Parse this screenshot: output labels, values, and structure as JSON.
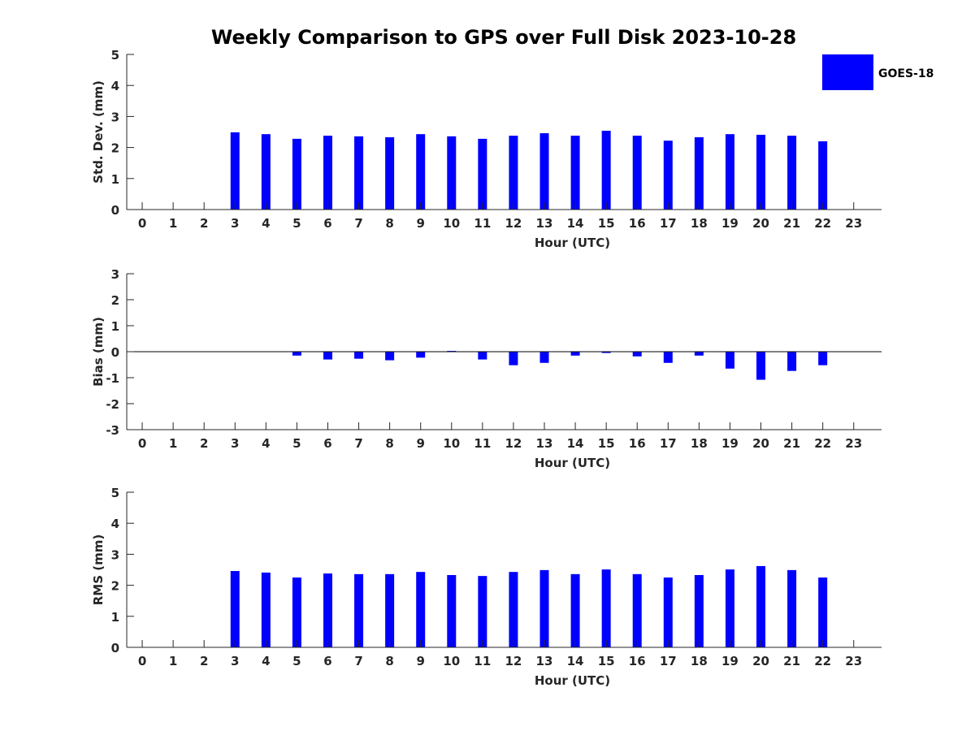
{
  "chart_data": [
    {
      "type": "bar",
      "title": "Weekly Comparison to GPS over Full Disk 2023-10-28",
      "xlabel": "Hour (UTC)",
      "ylabel": "Std. Dev. (mm)",
      "ylim": [
        0,
        5
      ],
      "yticks": [
        "0",
        "1",
        "2",
        "3",
        "4",
        "5"
      ],
      "xlim": [
        -0.5,
        23.9
      ],
      "categories": [
        "0",
        "1",
        "2",
        "3",
        "4",
        "5",
        "6",
        "7",
        "8",
        "9",
        "10",
        "11",
        "12",
        "13",
        "14",
        "15",
        "16",
        "17",
        "18",
        "19",
        "20",
        "21",
        "22",
        "23"
      ],
      "series": [
        {
          "name": "GOES-18",
          "color": "#0000ff",
          "values": [
            null,
            null,
            null,
            2.49,
            2.43,
            2.28,
            2.38,
            2.36,
            2.33,
            2.43,
            2.36,
            2.28,
            2.38,
            2.46,
            2.38,
            2.54,
            2.38,
            2.22,
            2.33,
            2.43,
            2.41,
            2.38,
            2.2,
            null
          ]
        }
      ],
      "legend": {
        "entries": [
          "GOES-18"
        ],
        "placement": "top-right"
      }
    },
    {
      "type": "bar",
      "xlabel": "Hour (UTC)",
      "ylabel": "Bias (mm)",
      "ylim": [
        -3,
        3
      ],
      "yticks": [
        "-3",
        "-2",
        "-1",
        "0",
        "1",
        "2",
        "3"
      ],
      "xlim": [
        -0.5,
        23.9
      ],
      "categories": [
        "0",
        "1",
        "2",
        "3",
        "4",
        "5",
        "6",
        "7",
        "8",
        "9",
        "10",
        "11",
        "12",
        "13",
        "14",
        "15",
        "16",
        "17",
        "18",
        "19",
        "20",
        "21",
        "22",
        "23"
      ],
      "series": [
        {
          "name": "GOES-18",
          "color": "#0000ff",
          "values": [
            null,
            null,
            null,
            null,
            null,
            -0.15,
            -0.3,
            -0.27,
            -0.33,
            -0.23,
            0.03,
            -0.3,
            -0.52,
            -0.43,
            -0.15,
            -0.05,
            -0.18,
            -0.43,
            -0.15,
            -0.65,
            -1.08,
            -0.74,
            -0.52,
            null
          ]
        }
      ]
    },
    {
      "type": "bar",
      "xlabel": "Hour (UTC)",
      "ylabel": "RMS (mm)",
      "ylim": [
        0,
        5
      ],
      "yticks": [
        "0",
        "1",
        "2",
        "3",
        "4",
        "5"
      ],
      "xlim": [
        -0.5,
        23.9
      ],
      "categories": [
        "0",
        "1",
        "2",
        "3",
        "4",
        "5",
        "6",
        "7",
        "8",
        "9",
        "10",
        "11",
        "12",
        "13",
        "14",
        "15",
        "16",
        "17",
        "18",
        "19",
        "20",
        "21",
        "22",
        "23"
      ],
      "series": [
        {
          "name": "GOES-18",
          "color": "#0000ff",
          "values": [
            null,
            null,
            null,
            2.46,
            2.41,
            2.25,
            2.38,
            2.36,
            2.36,
            2.43,
            2.33,
            2.3,
            2.43,
            2.49,
            2.36,
            2.51,
            2.36,
            2.25,
            2.33,
            2.51,
            2.62,
            2.49,
            2.25,
            null
          ]
        }
      ]
    }
  ]
}
